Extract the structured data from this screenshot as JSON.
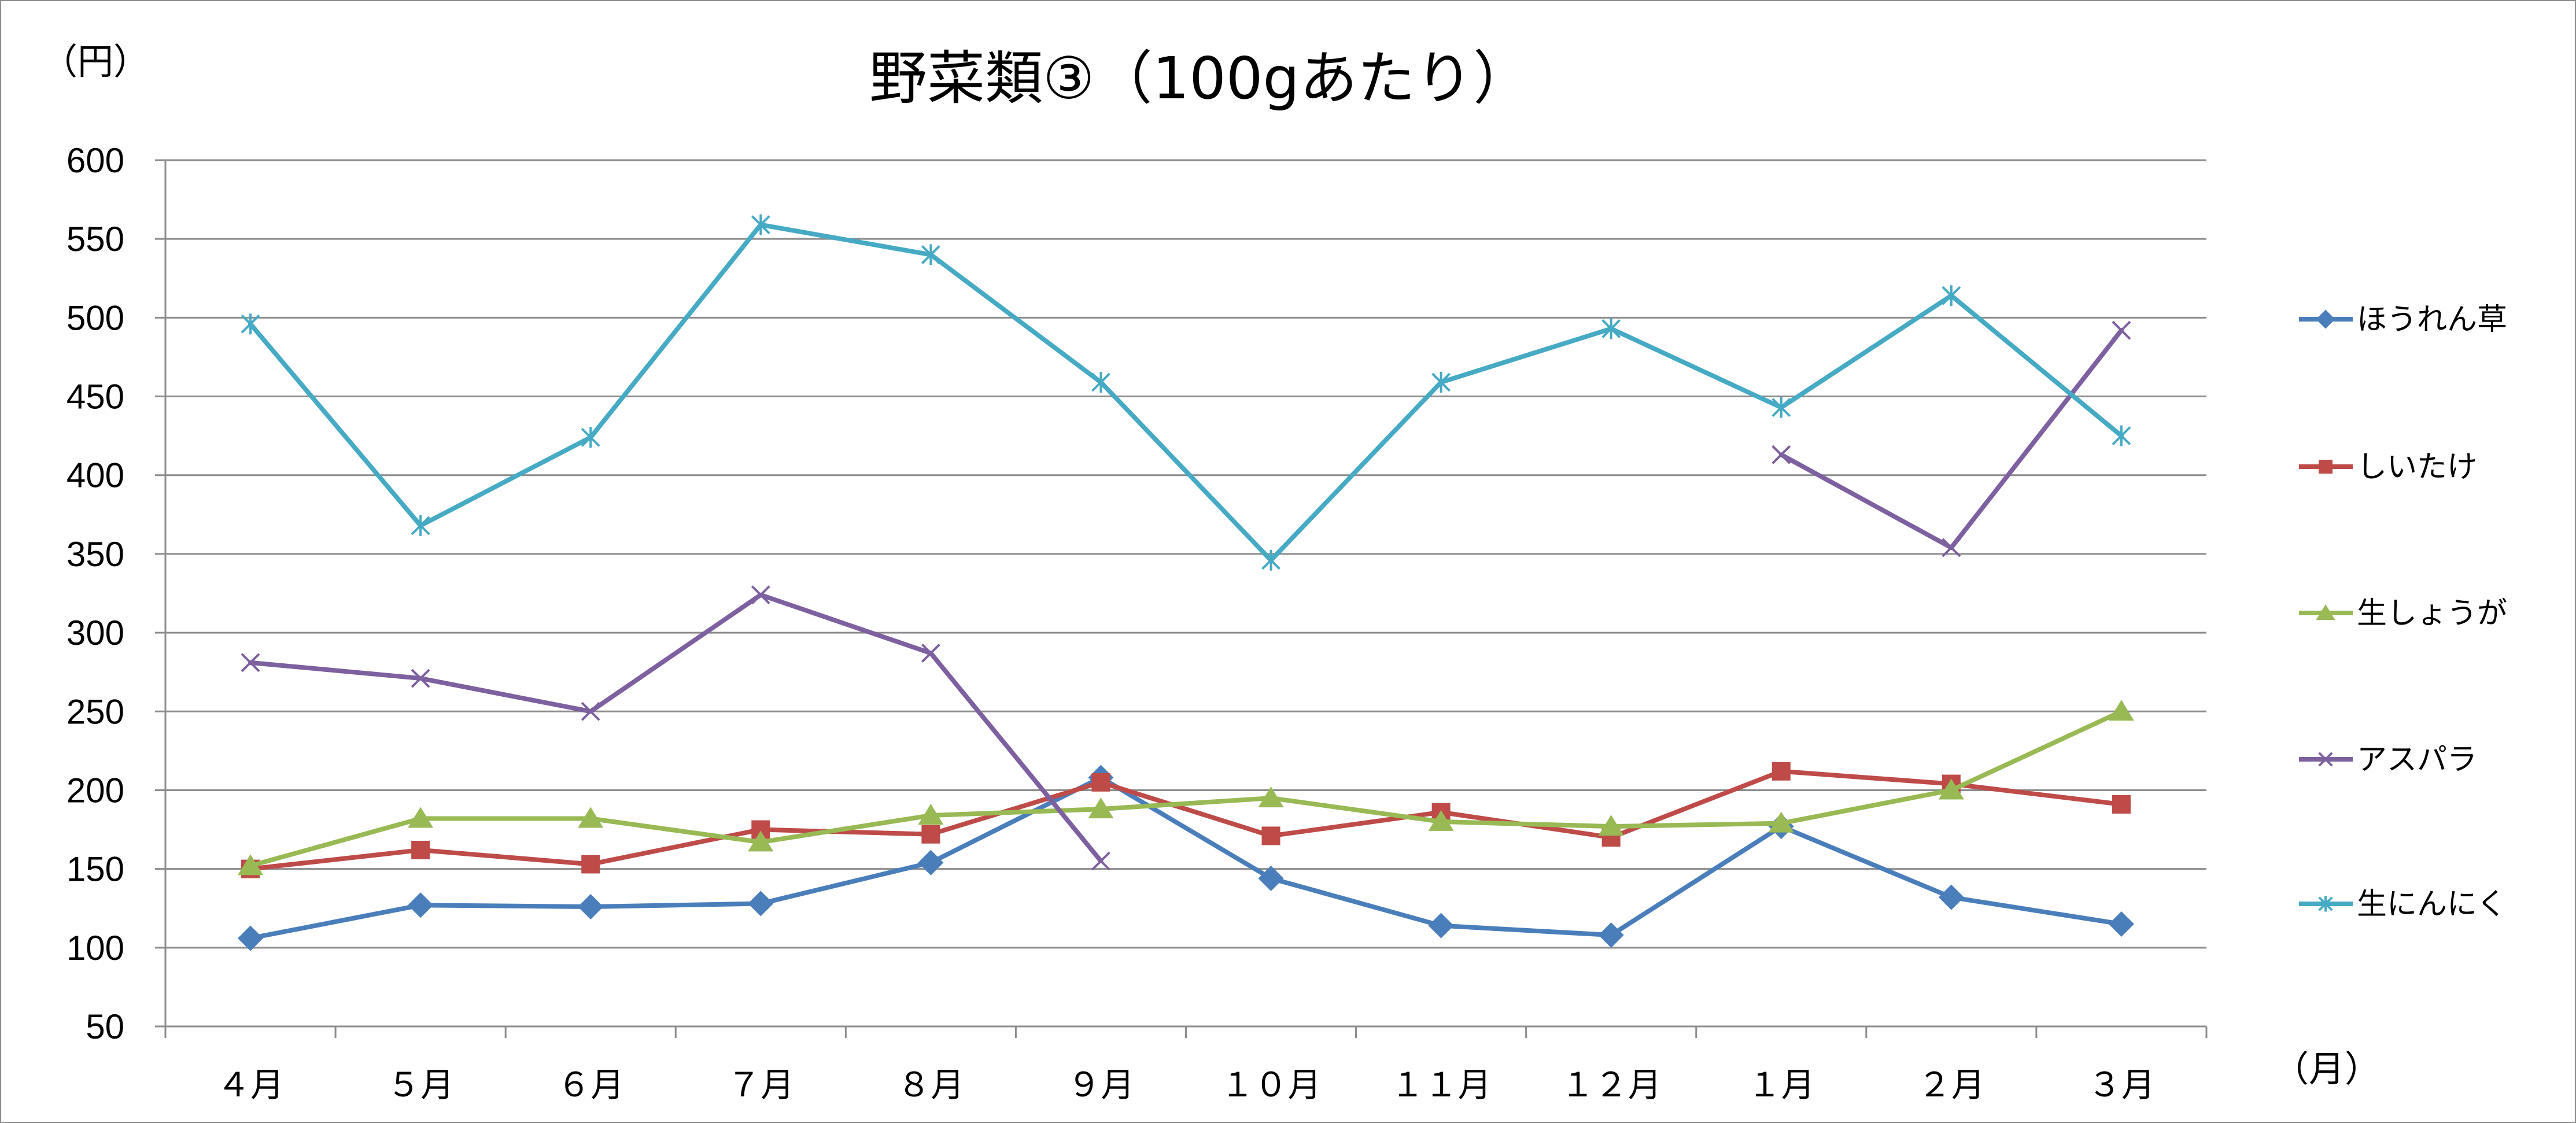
{
  "chart_data": {
    "type": "line",
    "title": "野菜類③（100gあたり）",
    "ylabel": "（円）",
    "xlabel": "（月）",
    "ylim": [
      50,
      600
    ],
    "yticks": [
      600,
      550,
      500,
      450,
      400,
      350,
      300,
      250,
      200,
      150,
      100,
      50
    ],
    "categories": [
      "４月",
      "５月",
      "６月",
      "７月",
      "８月",
      "９月",
      "１０月",
      "１１月",
      "１２月",
      "１月",
      "２月",
      "３月"
    ],
    "legend_position": "right",
    "grid": true,
    "series": [
      {
        "name": "ほうれん草",
        "color": "#4a7ebb",
        "marker": "diamond",
        "values": [
          106,
          127,
          126,
          128,
          154,
          208,
          144,
          114,
          108,
          177,
          132,
          115
        ]
      },
      {
        "name": "しいたけ",
        "color": "#be4b48",
        "marker": "square",
        "values": [
          150,
          162,
          153,
          175,
          172,
          205,
          171,
          186,
          170,
          212,
          204,
          191
        ]
      },
      {
        "name": "生しょうが",
        "color": "#98b954",
        "marker": "triangle",
        "values": [
          152,
          182,
          182,
          167,
          184,
          188,
          195,
          180,
          177,
          179,
          200,
          250
        ]
      },
      {
        "name": "アスパラ",
        "color": "#7d60a0",
        "marker": "x",
        "values": [
          281,
          271,
          250,
          324,
          287,
          155,
          null,
          null,
          null,
          413,
          354,
          492
        ]
      },
      {
        "name": "生にんにく",
        "color": "#46aac4",
        "marker": "star",
        "values": [
          496,
          368,
          424,
          559,
          540,
          459,
          346,
          459,
          493,
          443,
          514,
          425
        ]
      }
    ]
  }
}
